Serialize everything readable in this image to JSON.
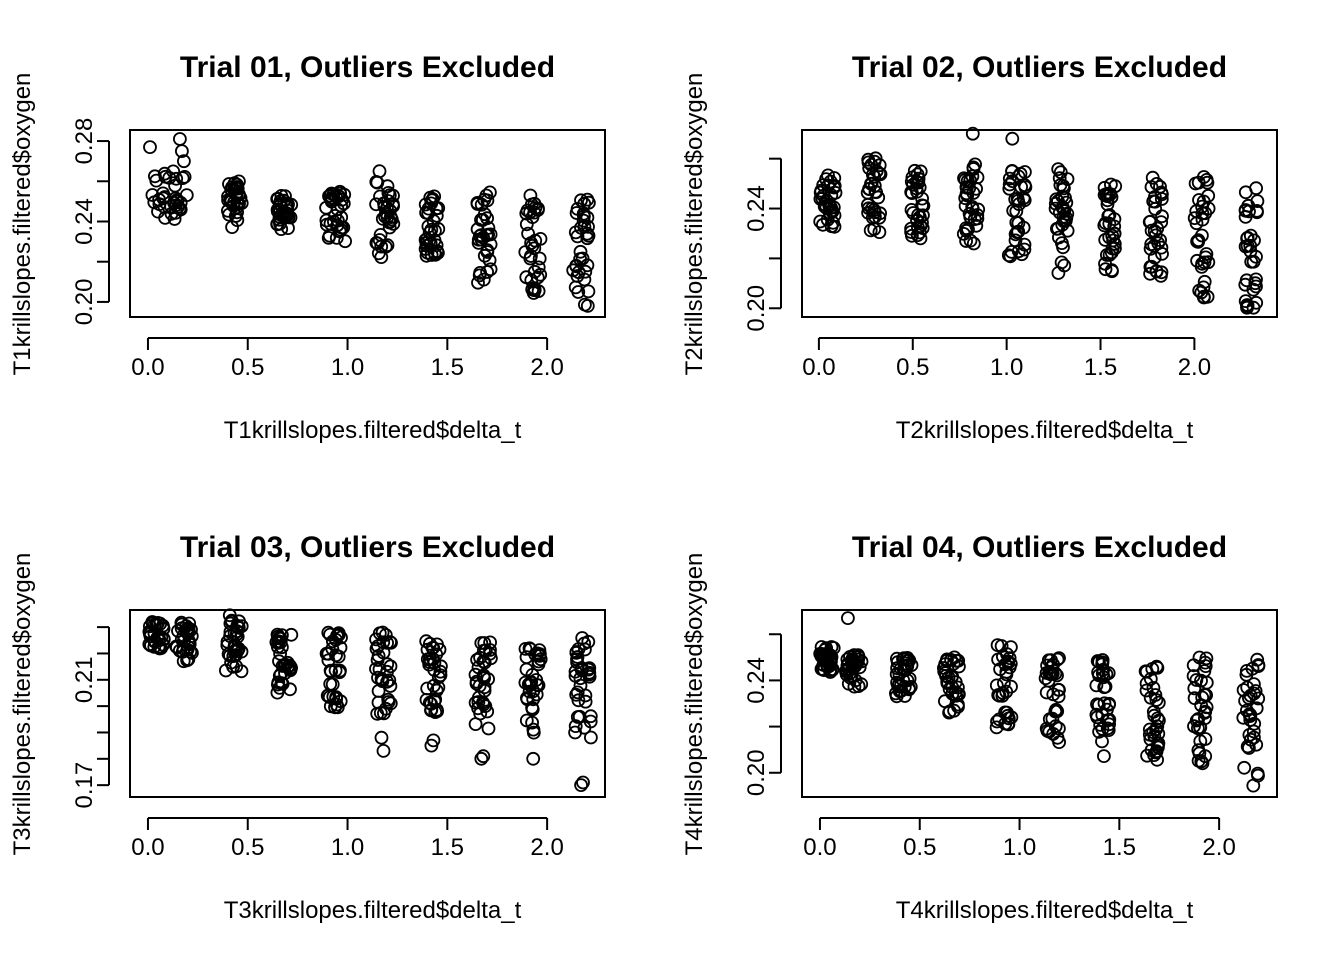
{
  "chart_data": [
    {
      "type": "scatter",
      "title": "Trial 01, Outliers Excluded",
      "xlabel": "T1krillslopes.filtered$delta_t",
      "ylabel": "T1krillslopes.filtered$oxygen",
      "xlim": [
        -0.09,
        2.29
      ],
      "ylim": [
        0.1925,
        0.2855
      ],
      "xticks": [
        0.0,
        0.5,
        1.0,
        1.5,
        2.0
      ],
      "xtick_labels": [
        "0.0",
        "0.5",
        "1.0",
        "1.5",
        "2.0"
      ],
      "yticks": [
        0.2,
        0.22,
        0.24,
        0.26,
        0.28
      ],
      "ytick_labels": [
        "0.20",
        "",
        "0.24",
        "",
        "0.28"
      ],
      "groups": [
        {
          "x": [
            0.0,
            0.2
          ],
          "y": [
            0.241,
            0.265
          ],
          "extra": [
            [
              0.01,
              0.277
            ],
            [
              0.16,
              0.281
            ],
            [
              0.17,
              0.275
            ],
            [
              0.18,
              0.27
            ]
          ]
        },
        {
          "x": [
            0.4,
            0.47
          ],
          "y": [
            0.237,
            0.26
          ],
          "extra": []
        },
        {
          "x": [
            0.64,
            0.72
          ],
          "y": [
            0.236,
            0.253
          ],
          "extra": []
        },
        {
          "x": [
            0.89,
            0.99
          ],
          "y": [
            0.229,
            0.255
          ],
          "extra": []
        },
        {
          "x": [
            1.14,
            1.23
          ],
          "y": [
            0.222,
            0.26
          ],
          "extra": [
            [
              1.16,
              0.265
            ]
          ]
        },
        {
          "x": [
            1.39,
            1.46
          ],
          "y": [
            0.221,
            0.253
          ],
          "extra": []
        },
        {
          "x": [
            1.64,
            1.72
          ],
          "y": [
            0.209,
            0.256
          ],
          "extra": []
        },
        {
          "x": [
            1.89,
            1.97
          ],
          "y": [
            0.204,
            0.254
          ],
          "extra": []
        },
        {
          "x": [
            2.13,
            2.21
          ],
          "y": [
            0.197,
            0.251
          ],
          "extra": []
        }
      ]
    },
    {
      "type": "scatter",
      "title": "Trial 02, Outliers Excluded",
      "xlabel": "T2krillslopes.filtered$delta_t",
      "ylabel": "T2krillslopes.filtered$oxygen",
      "xlim": [
        -0.09,
        2.44
      ],
      "ylim": [
        0.1965,
        0.2715
      ],
      "xticks": [
        0.0,
        0.5,
        1.0,
        1.5,
        2.0
      ],
      "xtick_labels": [
        "0.0",
        "0.5",
        "1.0",
        "1.5",
        "2.0"
      ],
      "yticks": [
        0.2,
        0.22,
        0.24,
        0.26
      ],
      "ytick_labels": [
        "0.20",
        "",
        "0.24",
        ""
      ],
      "groups": [
        {
          "x": [
            0.0,
            0.09
          ],
          "y": [
            0.231,
            0.254
          ],
          "extra": []
        },
        {
          "x": [
            0.26,
            0.33
          ],
          "y": [
            0.23,
            0.262
          ],
          "extra": []
        },
        {
          "x": [
            0.49,
            0.56
          ],
          "y": [
            0.228,
            0.258
          ],
          "extra": []
        },
        {
          "x": [
            0.77,
            0.85
          ],
          "y": [
            0.225,
            0.259
          ],
          "extra": [
            [
              0.82,
              0.27
            ]
          ]
        },
        {
          "x": [
            1.01,
            1.1
          ],
          "y": [
            0.219,
            0.256
          ],
          "extra": [
            [
              1.03,
              0.268
            ]
          ]
        },
        {
          "x": [
            1.26,
            1.33
          ],
          "y": [
            0.214,
            0.258
          ],
          "extra": []
        },
        {
          "x": [
            1.52,
            1.58
          ],
          "y": [
            0.211,
            0.251
          ],
          "extra": []
        },
        {
          "x": [
            1.76,
            1.83
          ],
          "y": [
            0.21,
            0.254
          ],
          "extra": []
        },
        {
          "x": [
            2.0,
            2.08
          ],
          "y": [
            0.204,
            0.254
          ],
          "extra": []
        },
        {
          "x": [
            2.27,
            2.34
          ],
          "y": [
            0.199,
            0.249
          ],
          "extra": []
        }
      ]
    },
    {
      "type": "scatter",
      "title": "Trial 03, Outliers Excluded",
      "xlabel": "T3krillslopes.filtered$delta_t",
      "ylabel": "T3krillslopes.filtered$oxygen",
      "xlim": [
        -0.09,
        2.29
      ],
      "ylim": [
        0.1655,
        0.2365
      ],
      "xticks": [
        0.0,
        0.5,
        1.0,
        1.5,
        2.0
      ],
      "xtick_labels": [
        "0.0",
        "0.5",
        "1.0",
        "1.5",
        "2.0"
      ],
      "yticks": [
        0.17,
        0.18,
        0.19,
        0.2,
        0.21,
        0.22,
        0.23
      ],
      "ytick_labels": [
        "0.17",
        "",
        "",
        "",
        "0.21",
        "",
        ""
      ],
      "groups": [
        {
          "x": [
            0.0,
            0.08
          ],
          "y": [
            0.221,
            0.232
          ],
          "extra": []
        },
        {
          "x": [
            0.14,
            0.22
          ],
          "y": [
            0.217,
            0.233
          ],
          "extra": []
        },
        {
          "x": [
            0.39,
            0.47
          ],
          "y": [
            0.213,
            0.234
          ],
          "extra": [
            [
              0.41,
              0.2345
            ]
          ]
        },
        {
          "x": [
            0.64,
            0.72
          ],
          "y": [
            0.205,
            0.23
          ],
          "extra": []
        },
        {
          "x": [
            0.89,
            0.97
          ],
          "y": [
            0.199,
            0.228
          ],
          "extra": []
        },
        {
          "x": [
            1.14,
            1.22
          ],
          "y": [
            0.197,
            0.229
          ],
          "extra": [
            [
              1.18,
              0.183
            ],
            [
              1.17,
              0.188
            ]
          ]
        },
        {
          "x": [
            1.39,
            1.47
          ],
          "y": [
            0.197,
            0.225
          ],
          "extra": [
            [
              1.42,
              0.185
            ],
            [
              1.43,
              0.187
            ]
          ]
        },
        {
          "x": [
            1.64,
            1.72
          ],
          "y": [
            0.189,
            0.226
          ],
          "extra": [
            [
              1.67,
              0.18
            ],
            [
              1.68,
              0.181
            ]
          ]
        },
        {
          "x": [
            1.89,
            1.97
          ],
          "y": [
            0.189,
            0.226
          ],
          "extra": [
            [
              1.93,
              0.18
            ]
          ]
        },
        {
          "x": [
            2.14,
            2.22
          ],
          "y": [
            0.183,
            0.226
          ],
          "extra": [
            [
              2.17,
              0.17
            ],
            [
              2.18,
              0.171
            ]
          ]
        }
      ]
    },
    {
      "type": "scatter",
      "title": "Trial 04, Outliers Excluded",
      "xlabel": "T4krillslopes.filtered$delta_t",
      "ylabel": "T4krillslopes.filtered$oxygen",
      "xlim": [
        -0.09,
        2.29
      ],
      "ylio": null,
      "ylim": [
        0.1895,
        0.2705
      ],
      "xticks": [
        0.0,
        0.5,
        1.0,
        1.5,
        2.0
      ],
      "xtick_labels": [
        "0.0",
        "0.5",
        "1.0",
        "1.5",
        "2.0"
      ],
      "yticks": [
        0.2,
        0.22,
        0.24,
        0.26
      ],
      "ytick_labels": [
        "0.20",
        "",
        "0.24",
        ""
      ],
      "groups": [
        {
          "x": [
            0.0,
            0.07
          ],
          "y": [
            0.243,
            0.256
          ],
          "extra": [
            [
              0.14,
              0.267
            ]
          ]
        },
        {
          "x": [
            0.13,
            0.21
          ],
          "y": [
            0.237,
            0.251
          ],
          "extra": []
        },
        {
          "x": [
            0.38,
            0.46
          ],
          "y": [
            0.233,
            0.25
          ],
          "extra": []
        },
        {
          "x": [
            0.62,
            0.7
          ],
          "y": [
            0.225,
            0.25
          ],
          "extra": []
        },
        {
          "x": [
            0.88,
            0.96
          ],
          "y": [
            0.219,
            0.256
          ],
          "extra": []
        },
        {
          "x": [
            1.13,
            1.2
          ],
          "y": [
            0.213,
            0.25
          ],
          "extra": []
        },
        {
          "x": [
            1.38,
            1.45
          ],
          "y": [
            0.207,
            0.249
          ],
          "extra": []
        },
        {
          "x": [
            1.63,
            1.7
          ],
          "y": [
            0.202,
            0.25
          ],
          "extra": []
        },
        {
          "x": [
            1.87,
            1.94
          ],
          "y": [
            0.198,
            0.251
          ],
          "extra": []
        },
        {
          "x": [
            2.12,
            2.2
          ],
          "y": [
            0.193,
            0.251
          ],
          "extra": []
        }
      ]
    }
  ]
}
